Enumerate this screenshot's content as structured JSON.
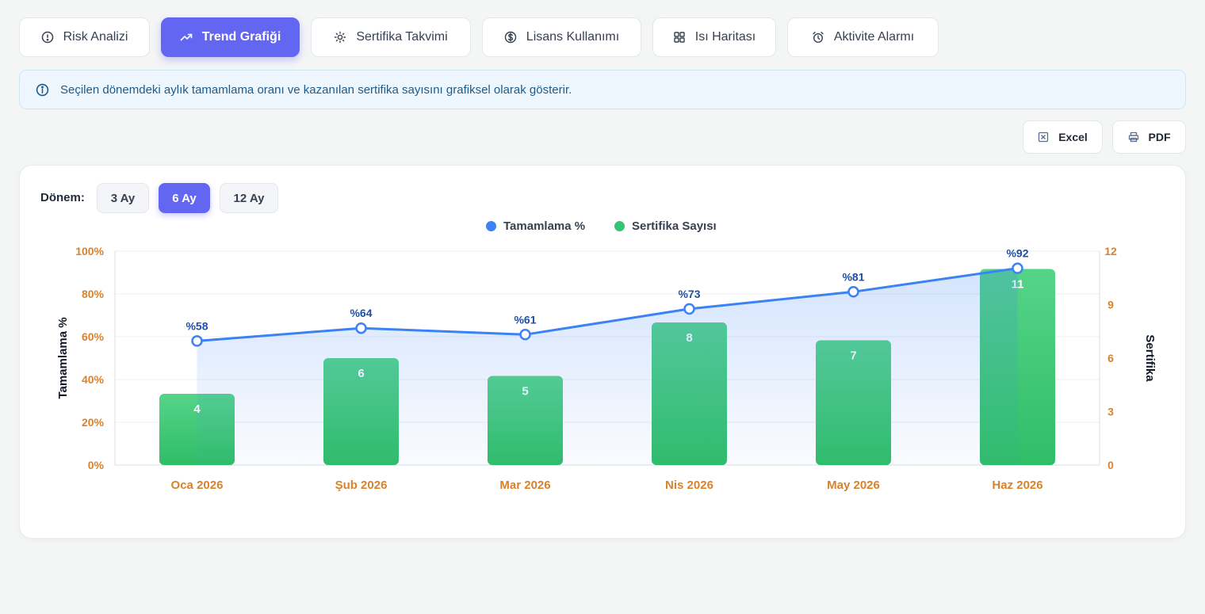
{
  "tabs": [
    {
      "label": "Risk Analizi",
      "icon": "alert-circle-icon",
      "active": false
    },
    {
      "label": "Trend Grafiği",
      "icon": "trending-up-icon",
      "active": true
    },
    {
      "label": "Sertifika Takvimi",
      "icon": "sun-icon",
      "active": false
    },
    {
      "label": "Lisans Kullanımı",
      "icon": "dollar-circle-icon",
      "active": false
    },
    {
      "label": "Isı Haritası",
      "icon": "grid-icon",
      "active": false
    },
    {
      "label": "Aktivite Alarmı",
      "icon": "alarm-clock-icon",
      "active": false
    }
  ],
  "info": {
    "text": "Seçilen dönemdeki aylık tamamlama oranı ve kazanılan sertifika sayısını grafiksel olarak gösterir."
  },
  "export": {
    "excel_label": "Excel",
    "pdf_label": "PDF"
  },
  "period": {
    "label": "Dönem:",
    "options": [
      "3 Ay",
      "6 Ay",
      "12 Ay"
    ],
    "selected": "6 Ay"
  },
  "colors": {
    "accent": "#6366f1",
    "line": "#3b82f6",
    "bar": "#34c472",
    "axis_label": "#d9822b"
  },
  "chart_data": {
    "type": "bar",
    "categories": [
      "Oca 2026",
      "Şub 2026",
      "Mar 2026",
      "Nis 2026",
      "May 2026",
      "Haz 2026"
    ],
    "series": [
      {
        "name": "Tamamlama %",
        "type": "line",
        "axis": "left",
        "values": [
          58,
          64,
          61,
          73,
          81,
          92
        ],
        "labels": [
          "%58",
          "%64",
          "%61",
          "%73",
          "%81",
          "%92"
        ]
      },
      {
        "name": "Sertifika Sayısı",
        "type": "bar",
        "axis": "right",
        "values": [
          4,
          6,
          5,
          8,
          7,
          11
        ]
      }
    ],
    "ylabel_left": "Tamamlama %",
    "ylabel_right": "Sertifika",
    "ylim_left": [
      0,
      100
    ],
    "ylim_right": [
      0,
      12
    ],
    "yticks_left": [
      "0%",
      "20%",
      "40%",
      "60%",
      "80%",
      "100%"
    ],
    "yticks_right": [
      "0",
      "3",
      "6",
      "9",
      "12"
    ],
    "legend": "top-center",
    "grid": true
  }
}
